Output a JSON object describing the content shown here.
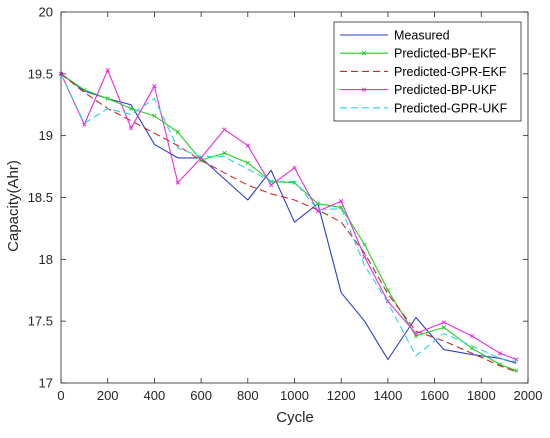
{
  "chart_data": {
    "type": "line",
    "xlabel": "Cycle",
    "ylabel": "Capacity(Ahr)",
    "xlim": [
      0,
      2000
    ],
    "ylim": [
      17,
      20
    ],
    "xticks": [
      "0",
      "200",
      "400",
      "600",
      "800",
      "1000",
      "1200",
      "1400",
      "1600",
      "1800",
      "2000"
    ],
    "yticks": [
      "17",
      "17.5",
      "18",
      "18.5",
      "19",
      "19.5",
      "20"
    ],
    "grid": false,
    "legend_position": "top-right",
    "series": [
      {
        "name": "Measured",
        "color": "#2b3fc8",
        "style": "solid",
        "marker": "none",
        "x": [
          0,
          100,
          200,
          300,
          400,
          500,
          600,
          700,
          800,
          900,
          1000,
          1100,
          1200,
          1300,
          1400,
          1520,
          1640,
          1760,
          1880,
          1950
        ],
        "y": [
          19.5,
          19.36,
          19.3,
          19.25,
          18.93,
          18.82,
          18.82,
          18.65,
          18.48,
          18.72,
          18.3,
          18.45,
          17.73,
          17.5,
          17.19,
          17.53,
          17.27,
          17.23,
          17.2,
          17.16
        ]
      },
      {
        "name": "Predicted-BP-EKF",
        "color": "#23d123",
        "style": "solid",
        "marker": "x",
        "x": [
          0,
          100,
          200,
          300,
          400,
          500,
          600,
          700,
          800,
          900,
          1000,
          1100,
          1200,
          1300,
          1400,
          1520,
          1640,
          1760,
          1880,
          1950
        ],
        "y": [
          19.5,
          19.37,
          19.3,
          19.22,
          19.16,
          19.03,
          18.8,
          18.86,
          18.78,
          18.63,
          18.62,
          18.45,
          18.42,
          18.12,
          17.75,
          17.38,
          17.45,
          17.28,
          17.15,
          17.1
        ]
      },
      {
        "name": "Predicted-GPR-EKF",
        "color": "#c8262d",
        "style": "dashed",
        "marker": "none",
        "x": [
          0,
          100,
          200,
          300,
          400,
          500,
          600,
          700,
          800,
          900,
          1000,
          1100,
          1200,
          1300,
          1400,
          1520,
          1640,
          1760,
          1880,
          1950
        ],
        "y": [
          19.5,
          19.35,
          19.22,
          19.12,
          19.02,
          18.92,
          18.8,
          18.7,
          18.6,
          18.53,
          18.48,
          18.4,
          18.3,
          18.05,
          17.72,
          17.42,
          17.34,
          17.24,
          17.14,
          17.09
        ]
      },
      {
        "name": "Predicted-BP-UKF",
        "color": "#e82ee0",
        "style": "solid",
        "marker": "x",
        "x": [
          0,
          100,
          200,
          300,
          400,
          500,
          600,
          700,
          800,
          900,
          1000,
          1100,
          1200,
          1300,
          1400,
          1520,
          1640,
          1760,
          1880,
          1950
        ],
        "y": [
          19.5,
          19.09,
          19.53,
          19.06,
          19.4,
          18.62,
          18.82,
          19.05,
          18.92,
          18.6,
          18.74,
          18.39,
          18.47,
          18.02,
          17.66,
          17.4,
          17.49,
          17.38,
          17.24,
          17.19
        ]
      },
      {
        "name": "Predicted-GPR-UKF",
        "color": "#2ad4e4",
        "style": "dashed",
        "marker": "none",
        "x": [
          0,
          100,
          200,
          300,
          400,
          500,
          600,
          700,
          800,
          900,
          1000,
          1100,
          1200,
          1300,
          1400,
          1520,
          1640,
          1760,
          1880,
          1950
        ],
        "y": [
          19.5,
          19.1,
          19.22,
          19.17,
          19.3,
          18.9,
          18.83,
          18.83,
          18.73,
          18.63,
          18.63,
          18.4,
          18.41,
          17.95,
          17.65,
          17.22,
          17.4,
          17.3,
          17.2,
          17.17
        ]
      }
    ]
  }
}
